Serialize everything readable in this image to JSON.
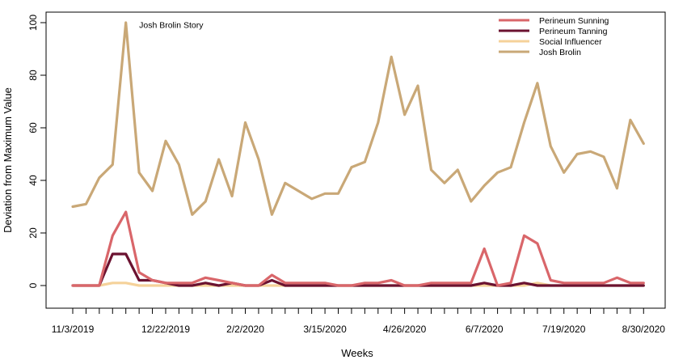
{
  "chart_data": {
    "type": "line",
    "xlabel": "Weeks",
    "ylabel": "Deviation from Maximum Value",
    "ylim": [
      -10,
      103
    ],
    "yticks": [
      0,
      20,
      40,
      60,
      80,
      100
    ],
    "x_tick_labels": [
      {
        "index": 0,
        "label": "11/3/2019"
      },
      {
        "index": 7,
        "label": "12/22/2019"
      },
      {
        "index": 13,
        "label": "2/2/2020"
      },
      {
        "index": 19,
        "label": "3/15/2020"
      },
      {
        "index": 25,
        "label": "4/26/2020"
      },
      {
        "index": 31,
        "label": "6/7/2020"
      },
      {
        "index": 37,
        "label": "7/19/2020"
      },
      {
        "index": 43,
        "label": "8/30/2020"
      }
    ],
    "n_weeks": 43,
    "legend_position": "top-right",
    "grid": false,
    "annotation": {
      "text": "Josh Brolin Story",
      "index": 5,
      "y": 98
    },
    "series": [
      {
        "name": "Josh Brolin",
        "color": "#c9a877",
        "values": [
          30,
          31,
          41,
          46,
          100,
          43,
          36,
          55,
          46,
          27,
          32,
          48,
          34,
          62,
          48,
          27,
          39,
          36,
          33,
          35,
          35,
          45,
          47,
          62,
          87,
          65,
          76,
          44,
          39,
          44,
          32,
          38,
          43,
          45,
          62,
          77,
          53,
          43,
          50,
          51,
          49,
          37,
          63,
          54
        ]
      },
      {
        "name": "Social Influencer",
        "color": "#f5d29a",
        "values": [
          0,
          0,
          0,
          1,
          1,
          0,
          0,
          0,
          0,
          0,
          0,
          0,
          0,
          0,
          0,
          0,
          0,
          0,
          0,
          0,
          0,
          0,
          0,
          0,
          0,
          0,
          0,
          0,
          0,
          0,
          0,
          0,
          0,
          0,
          0,
          1,
          0,
          0,
          0,
          0,
          0,
          0,
          0,
          0
        ]
      },
      {
        "name": "Perineum Tanning",
        "color": "#6b1230",
        "values": [
          0,
          0,
          0,
          12,
          12,
          2,
          2,
          1,
          0,
          0,
          1,
          0,
          1,
          0,
          0,
          2,
          0,
          0,
          0,
          0,
          0,
          0,
          0,
          0,
          0,
          0,
          0,
          0,
          0,
          0,
          0,
          1,
          0,
          0,
          1,
          0,
          0,
          0,
          0,
          0,
          0,
          0,
          0,
          0
        ]
      },
      {
        "name": "Perineum Sunning",
        "color": "#d9666a",
        "values": [
          0,
          0,
          0,
          19,
          28,
          5,
          2,
          1,
          1,
          1,
          3,
          2,
          1,
          0,
          0,
          4,
          1,
          1,
          1,
          1,
          0,
          0,
          1,
          1,
          2,
          0,
          0,
          1,
          1,
          1,
          1,
          14,
          0,
          1,
          19,
          16,
          2,
          1,
          1,
          1,
          1,
          3,
          1,
          1
        ]
      }
    ],
    "legend_order": [
      "Perineum Sunning",
      "Perineum Tanning",
      "Social Influencer",
      "Josh Brolin"
    ]
  }
}
